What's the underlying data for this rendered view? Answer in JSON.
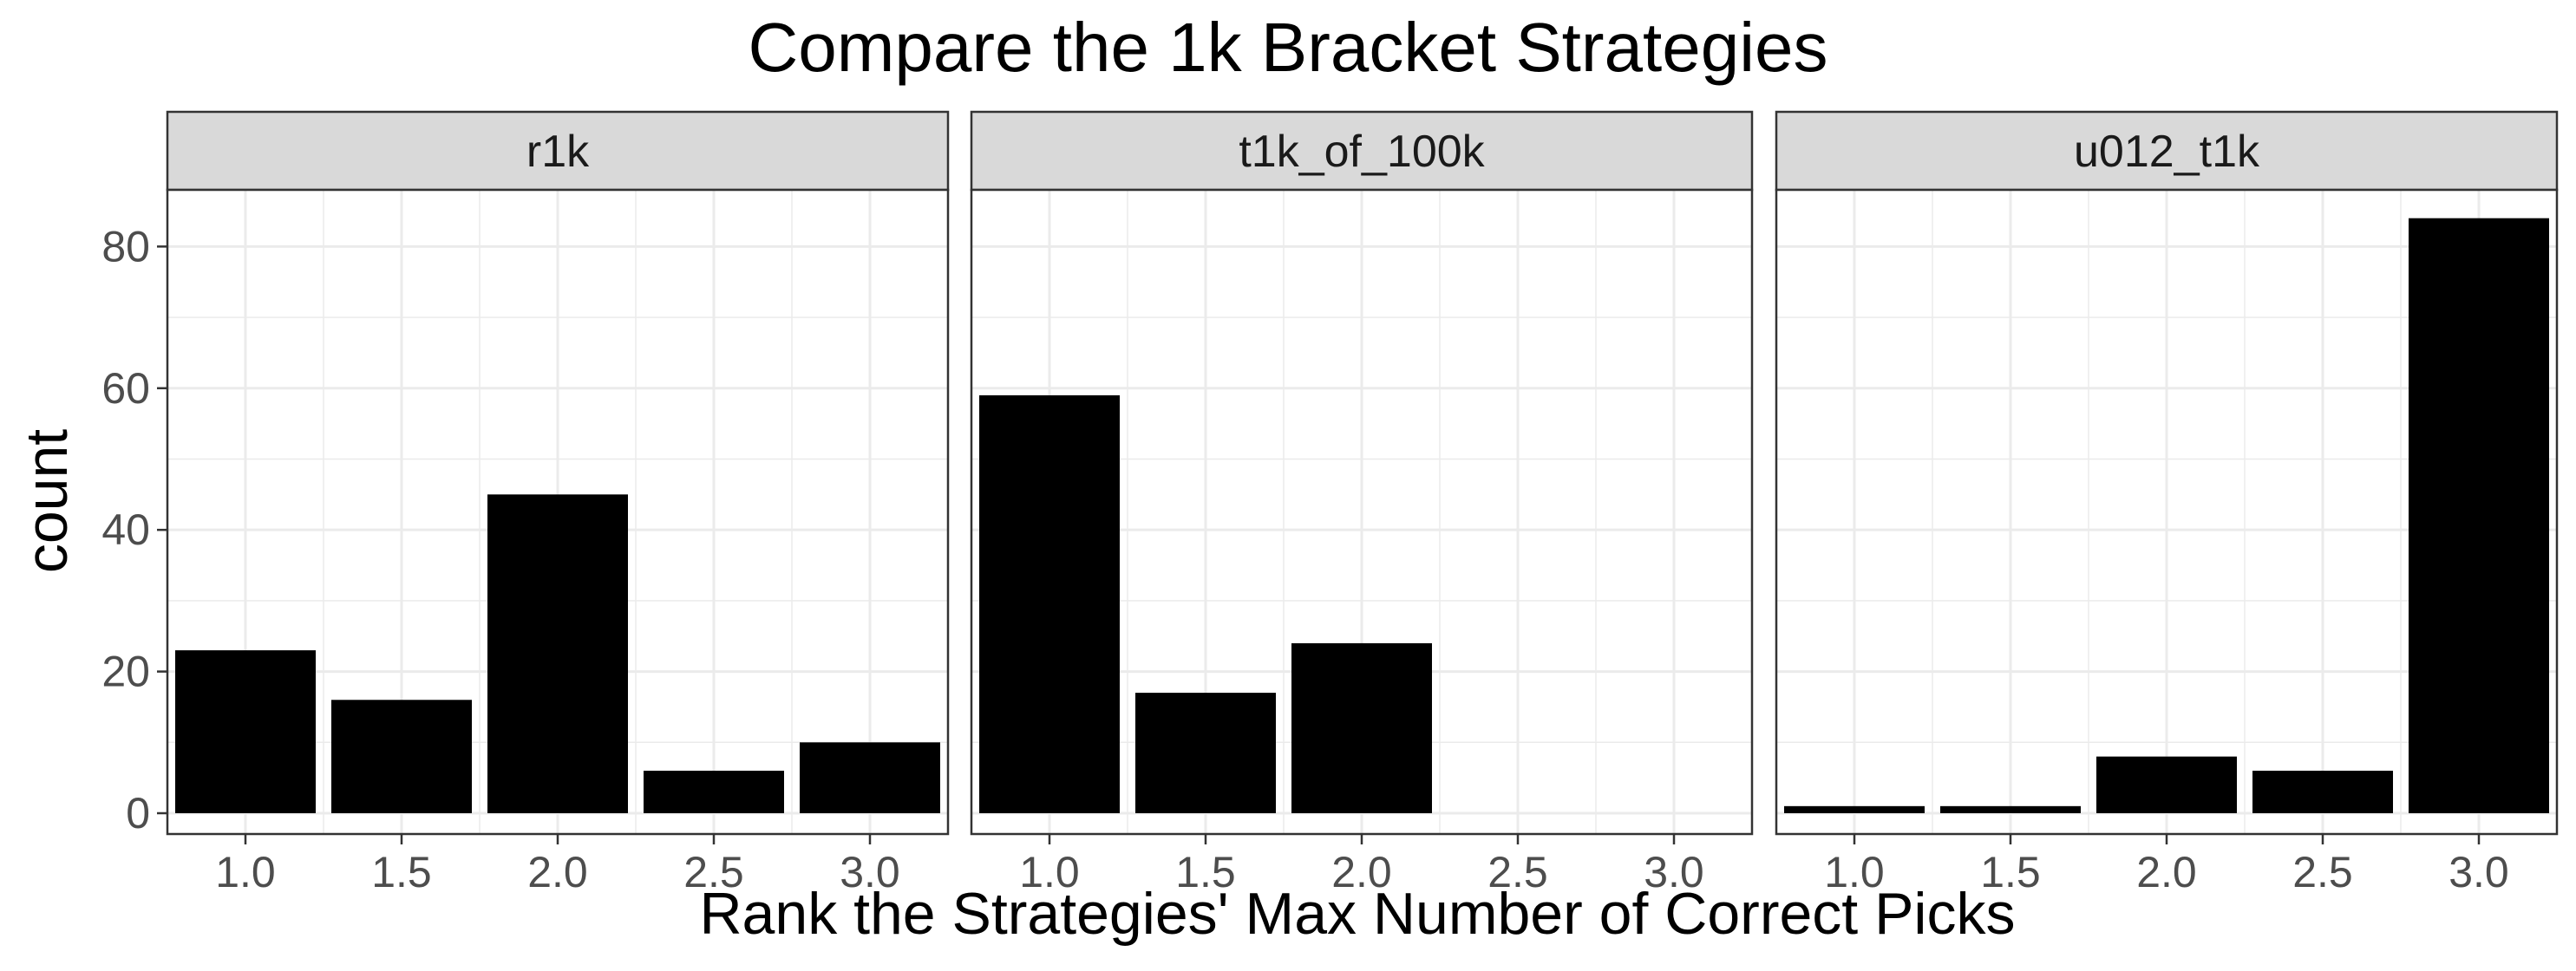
{
  "chart_data": {
    "type": "bar",
    "title": "Compare the 1k Bracket Strategies",
    "xlabel": "Rank the Strategies' Max Number of Correct Picks",
    "ylabel": "count",
    "x_ticks": [
      "1.0",
      "1.5",
      "2.0",
      "2.5",
      "3.0"
    ],
    "y_ticks": [
      "0",
      "20",
      "40",
      "60",
      "80"
    ],
    "xlim": [
      0.75,
      3.25
    ],
    "ylim": [
      0,
      88
    ],
    "grid": true,
    "panels": [
      {
        "name": "r1k",
        "x": [
          1.0,
          1.5,
          2.0,
          2.5,
          3.0
        ],
        "values": [
          23,
          16,
          45,
          6,
          10
        ]
      },
      {
        "name": "t1k_of_100k",
        "x": [
          1.0,
          1.5,
          2.0
        ],
        "values": [
          59,
          17,
          24
        ]
      },
      {
        "name": "u012_t1k",
        "x": [
          1.0,
          1.5,
          2.0,
          2.5,
          3.0
        ],
        "values": [
          1,
          1,
          8,
          6,
          84
        ]
      }
    ],
    "colors": {
      "bar": "#000000",
      "strip": "#d9d9d9",
      "grid": "#ebebeb",
      "border": "#333333"
    }
  }
}
